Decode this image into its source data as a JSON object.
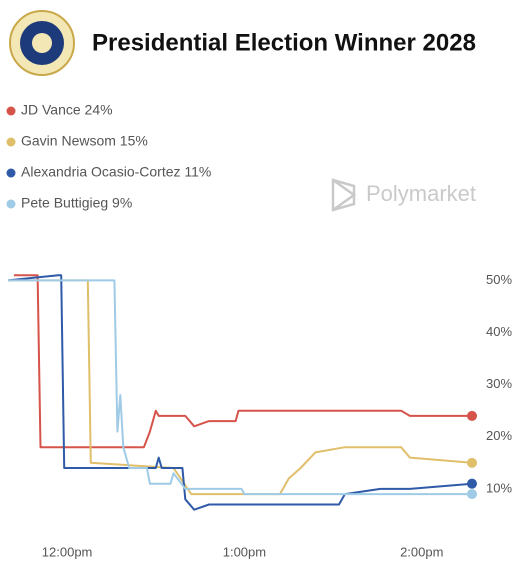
{
  "chart_data": {
    "type": "line",
    "title": "Presidential Election Winner 2028",
    "watermark": "Polymarket",
    "xlim": [
      "11:40am",
      "2:17pm"
    ],
    "xticks": [
      "12:00pm",
      "1:00pm",
      "2:00pm"
    ],
    "ylim": [
      0,
      52
    ],
    "yticks": [
      {
        "value": 10,
        "label": "10%"
      },
      {
        "value": 20,
        "label": "20%"
      },
      {
        "value": 30,
        "label": "30%"
      },
      {
        "value": 40,
        "label": "40%"
      },
      {
        "value": 50,
        "label": "50%"
      }
    ],
    "grid": false,
    "series": [
      {
        "name": "JD Vance 24%",
        "color": "#d6534a",
        "x": [
          "11:42am",
          "11:50am",
          "11:51am",
          "12:26pm",
          "12:28pm",
          "12:30pm",
          "12:31pm",
          "12:40pm",
          "12:43pm",
          "12:48pm",
          "12:57pm",
          "12:58pm",
          "1:53pm",
          "1:56pm",
          "2:17pm"
        ],
        "values": [
          51,
          51,
          18,
          18,
          21,
          25,
          24,
          24,
          22,
          23,
          23,
          25,
          25,
          24,
          24
        ]
      },
      {
        "name": "Gavin Newsom 15%",
        "color": "#e0bf6a",
        "x": [
          "11:40am",
          "12:07pm",
          "12:08pm",
          "12:36pm",
          "12:42pm",
          "1:12pm",
          "1:15pm",
          "1:19pm",
          "1:24pm",
          "1:34pm",
          "1:53pm",
          "1:56pm",
          "2:17pm"
        ],
        "values": [
          50,
          50,
          15,
          14,
          9,
          9,
          12,
          14,
          17,
          18,
          18,
          16,
          15
        ]
      },
      {
        "name": "Alexandria Ocasio-Cortez 11%",
        "color": "#2f5aa8",
        "x": [
          "11:40am",
          "11:57am",
          "11:58am",
          "11:59am",
          "12:30pm",
          "12:31pm",
          "12:32pm",
          "12:39pm",
          "12:40pm",
          "12:43pm",
          "12:48pm",
          "1:32pm",
          "1:34pm",
          "1:46pm",
          "1:56pm",
          "2:17pm"
        ],
        "values": [
          50,
          51,
          51,
          14,
          14,
          16,
          14,
          14,
          8,
          6,
          7,
          7,
          9,
          10,
          10,
          11
        ]
      },
      {
        "name": "Pete Buttigieg 9%",
        "color": "#9fcbe6",
        "x": [
          "11:40am",
          "12:16pm",
          "12:17pm",
          "12:18pm",
          "12:19pm",
          "12:21pm",
          "12:27pm",
          "12:28pm",
          "12:35pm",
          "12:36pm",
          "12:40pm",
          "12:59pm",
          "1:00pm",
          "2:17pm"
        ],
        "values": [
          50,
          50,
          21,
          28,
          18,
          14,
          14,
          11,
          11,
          13,
          10,
          10,
          9,
          9
        ]
      }
    ]
  }
}
